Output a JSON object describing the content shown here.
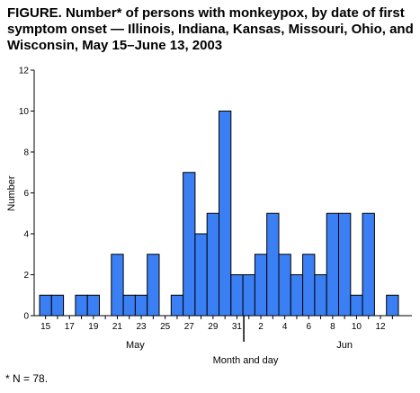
{
  "title": "FIGURE. Number* of persons with monkeypox, by date of first symptom onset — Illinois, Indiana, Kansas, Missouri, Ohio, and Wisconsin, May 15–June 13, 2003",
  "footnote": "* N = 78.",
  "colors": {
    "bar_fill": "#3b7ff5",
    "bar_stroke": "#000000"
  },
  "chart_data": {
    "type": "bar",
    "title": "FIGURE. Number* of persons with monkeypox, by date of first symptom onset — Illinois, Indiana, Kansas, Missouri, Ohio, and Wisconsin, May 15–June 13, 2003",
    "xlabel": "Month and day",
    "ylabel": "Number",
    "ylim": [
      0,
      12
    ],
    "yticks": [
      0,
      2,
      4,
      6,
      8,
      10,
      12
    ],
    "grid": false,
    "categories": [
      "May 15",
      "May 16",
      "May 17",
      "May 18",
      "May 19",
      "May 20",
      "May 21",
      "May 22",
      "May 23",
      "May 24",
      "May 25",
      "May 26",
      "May 27",
      "May 28",
      "May 29",
      "May 30",
      "May 31",
      "Jun 1",
      "Jun 2",
      "Jun 3",
      "Jun 4",
      "Jun 5",
      "Jun 6",
      "Jun 7",
      "Jun 8",
      "Jun 9",
      "Jun 10",
      "Jun 11",
      "Jun 12",
      "Jun 13"
    ],
    "tick_labels": [
      "15",
      "",
      "17",
      "",
      "19",
      "",
      "21",
      "",
      "23",
      "",
      "25",
      "",
      "27",
      "",
      "29",
      "",
      "31",
      "",
      "2",
      "",
      "4",
      "",
      "6",
      "",
      "8",
      "",
      "10",
      "",
      "12",
      ""
    ],
    "month_labels": [
      {
        "label": "May",
        "index": 7.5
      },
      {
        "label": "Jun",
        "index": 25
      }
    ],
    "values": [
      1,
      1,
      0,
      1,
      1,
      0,
      3,
      1,
      1,
      3,
      0,
      1,
      7,
      4,
      5,
      10,
      2,
      2,
      3,
      5,
      3,
      2,
      3,
      2,
      5,
      5,
      1,
      5,
      0,
      1
    ]
  }
}
